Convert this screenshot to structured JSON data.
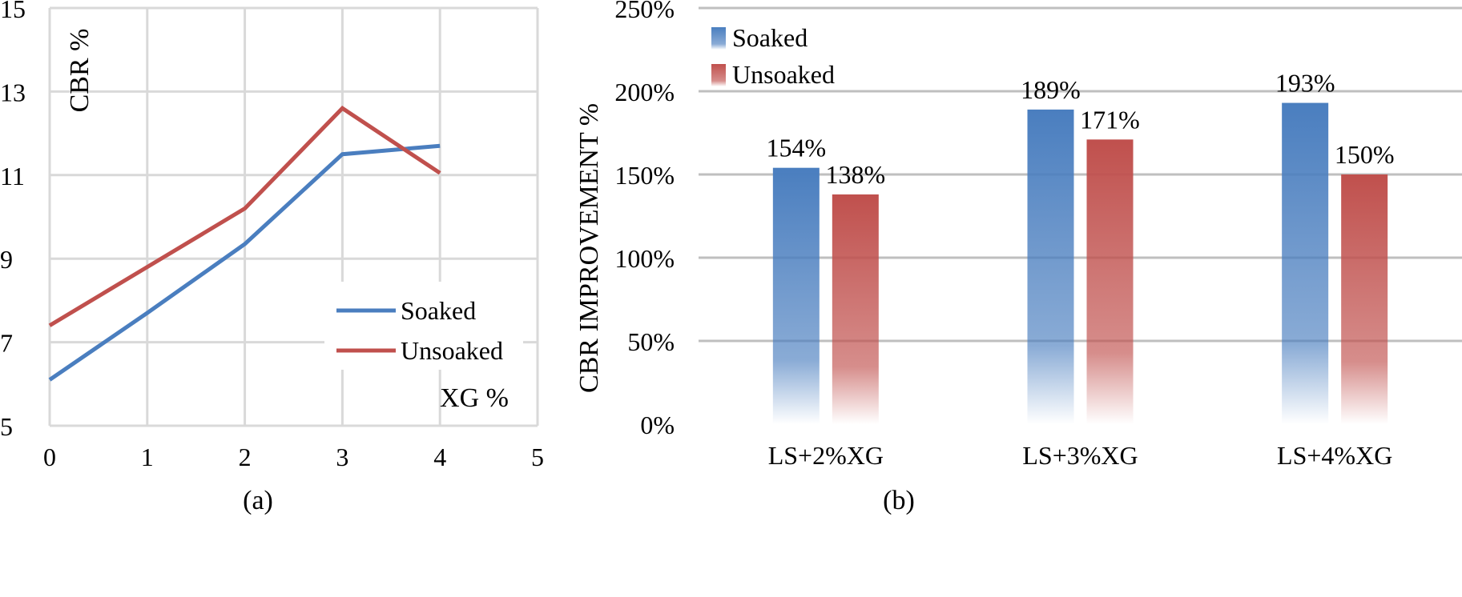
{
  "chart_data": [
    {
      "type": "line",
      "panel_label": "(a)",
      "ylabel": "CBR %",
      "xlabel": "XG %",
      "xlim": [
        0,
        5
      ],
      "ylim": [
        5,
        15
      ],
      "x_ticks": [
        0,
        1,
        2,
        3,
        4,
        5
      ],
      "y_ticks": [
        5,
        7,
        9,
        11,
        13,
        15
      ],
      "grid": true,
      "legend_position": "bottom-right",
      "series": [
        {
          "name": "Soaked",
          "color": "#4a7ebf",
          "x": [
            0,
            1,
            2,
            3,
            4
          ],
          "values": [
            6.1,
            7.7,
            9.35,
            11.5,
            11.7
          ]
        },
        {
          "name": "Unsoaked",
          "color": "#c0504d",
          "x": [
            0,
            1,
            2,
            3,
            4
          ],
          "values": [
            7.4,
            8.8,
            10.2,
            12.6,
            11.05
          ]
        }
      ]
    },
    {
      "type": "bar",
      "panel_label": "(b)",
      "ylabel": "CBR IMPROVEMENT %",
      "xlabel": "",
      "categories": [
        "LS+2%XG",
        "LS+3%XG",
        "LS+4%XG"
      ],
      "ylim": [
        0,
        250
      ],
      "y_ticks": [
        0,
        50,
        100,
        150,
        200,
        250
      ],
      "y_tick_labels": [
        "0%",
        "50%",
        "100%",
        "150%",
        "200%",
        "250%"
      ],
      "grid": true,
      "legend_position": "top-left",
      "series": [
        {
          "name": "Soaked",
          "color": "#4a7ebf",
          "values": [
            154,
            189,
            193
          ],
          "labels": [
            "154%",
            "189%",
            "193%"
          ]
        },
        {
          "name": "Unsoaked",
          "color": "#c0504d",
          "values": [
            138,
            171,
            150
          ],
          "labels": [
            "138%",
            "171%",
            "150%"
          ]
        }
      ]
    }
  ]
}
